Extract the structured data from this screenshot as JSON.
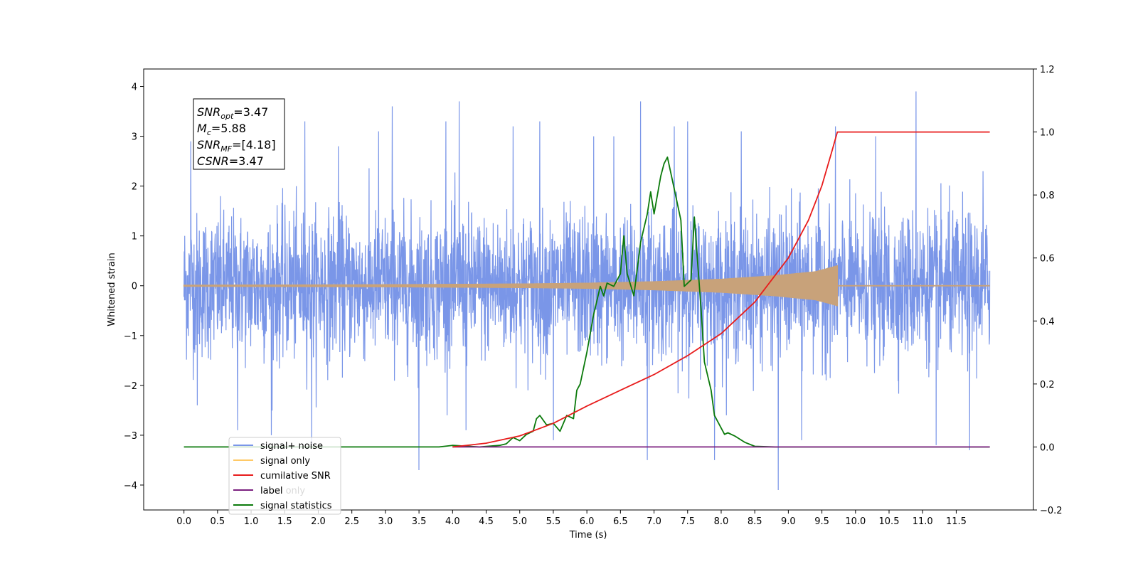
{
  "chart_data": {
    "type": "line",
    "xlabel": "Time (s)",
    "ylabel": "Whitened strain",
    "y2label": "",
    "xlim": [
      -0.6,
      12.65
    ],
    "ylim": [
      -4.5,
      4.35
    ],
    "y2lim": [
      -0.2,
      1.2
    ],
    "x_ticks": [
      0.0,
      0.5,
      1.0,
      1.5,
      2.0,
      2.5,
      3.0,
      3.5,
      4.0,
      4.5,
      5.0,
      5.5,
      6.0,
      6.5,
      7.0,
      7.5,
      8.0,
      8.5,
      9.0,
      9.5,
      10.0,
      10.5,
      11.0,
      11.5
    ],
    "x_tick_labels": [
      "0.0",
      "0.5",
      "1.0",
      "1.5",
      "2.0",
      "2.5",
      "3.0",
      "3.5",
      "4.0",
      "4.5",
      "5.0",
      "5.5",
      "6.0",
      "6.5",
      "7.0",
      "7.5",
      "8.0",
      "8.5",
      "9.0",
      "9.5",
      "10.0",
      "10.5",
      "11.0",
      "11.5"
    ],
    "y_ticks": [
      4,
      3,
      2,
      1,
      0,
      -1,
      -2,
      -3,
      -4
    ],
    "y_tick_labels": [
      "4",
      "3",
      "2",
      "1",
      "0",
      "−1",
      "−2",
      "−3",
      "−4"
    ],
    "y2_ticks": [
      1.2,
      1.0,
      0.8,
      0.6,
      0.4,
      0.2,
      0.0,
      -0.2
    ],
    "y2_tick_labels": [
      "1.2",
      "1.0",
      "0.8",
      "0.6",
      "0.4",
      "0.2",
      "0.0",
      "−0.2"
    ],
    "grid": false,
    "legend_position": "bottom-left",
    "stats_box": {
      "snr_opt": {
        "symbol": "SNR",
        "sub": "opt",
        "value": "=3.47"
      },
      "mc": {
        "symbol": "M",
        "sub": "c",
        "value": "=5.88"
      },
      "snr_mf": {
        "symbol": "SNR",
        "sub": "MF",
        "value": "=[4.18]"
      },
      "csnr": {
        "symbol": "CSNR",
        "sub": "",
        "value": "=3.47"
      }
    },
    "series": [
      {
        "name": "signal+ noise",
        "color": "#7a96e8",
        "axis": "left",
        "kind": "noise",
        "x_range": [
          0.0,
          12.0
        ],
        "typical_std": 0.72,
        "spikes": [
          [
            0.1,
            2.9
          ],
          [
            0.2,
            -2.4
          ],
          [
            0.8,
            -2.9
          ],
          [
            1.3,
            -3.0
          ],
          [
            1.8,
            3.3
          ],
          [
            1.9,
            -3.2
          ],
          [
            2.3,
            2.8
          ],
          [
            2.9,
            3.1
          ],
          [
            3.1,
            3.6
          ],
          [
            3.5,
            -3.7
          ],
          [
            3.9,
            3.3
          ],
          [
            4.1,
            3.7
          ],
          [
            4.2,
            -2.9
          ],
          [
            4.9,
            3.2
          ],
          [
            5.3,
            3.3
          ],
          [
            5.5,
            -3.1
          ],
          [
            6.1,
            3.0
          ],
          [
            6.4,
            3.0
          ],
          [
            6.8,
            3.7
          ],
          [
            6.9,
            -3.5
          ],
          [
            7.3,
            3.2
          ],
          [
            7.5,
            3.3
          ],
          [
            7.9,
            -3.5
          ],
          [
            8.3,
            3.1
          ],
          [
            8.85,
            -4.1
          ],
          [
            9.2,
            -3.1
          ],
          [
            9.7,
            3.2
          ],
          [
            10.3,
            3.0
          ],
          [
            10.9,
            3.9
          ],
          [
            11.2,
            -3.2
          ],
          [
            11.7,
            -3.3
          ],
          [
            11.9,
            2.3
          ]
        ]
      },
      {
        "name": "signal only",
        "color": "#c8a27a",
        "legend_color": "#ffc966",
        "axis": "left",
        "kind": "chirp",
        "x_range": [
          0.0,
          9.73
        ],
        "tail_range": [
          9.73,
          12.0
        ],
        "amplitude_points": [
          [
            0.0,
            0.01
          ],
          [
            3.0,
            0.02
          ],
          [
            5.0,
            0.035
          ],
          [
            6.0,
            0.05
          ],
          [
            7.0,
            0.08
          ],
          [
            8.0,
            0.13
          ],
          [
            8.8,
            0.2
          ],
          [
            9.4,
            0.28
          ],
          [
            9.6,
            0.35
          ],
          [
            9.73,
            0.4
          ]
        ]
      },
      {
        "name": "cumilative SNR",
        "color": "#e81c1c",
        "axis": "right",
        "points": [
          [
            4.0,
            0.0
          ],
          [
            4.5,
            0.012
          ],
          [
            5.0,
            0.035
          ],
          [
            5.5,
            0.075
          ],
          [
            6.0,
            0.13
          ],
          [
            6.5,
            0.18
          ],
          [
            7.0,
            0.23
          ],
          [
            7.5,
            0.29
          ],
          [
            8.0,
            0.36
          ],
          [
            8.5,
            0.46
          ],
          [
            9.0,
            0.6
          ],
          [
            9.3,
            0.72
          ],
          [
            9.5,
            0.83
          ],
          [
            9.65,
            0.94
          ],
          [
            9.73,
            1.0
          ],
          [
            12.0,
            1.0
          ]
        ]
      },
      {
        "name": "label",
        "color": "#7b1f7f",
        "axis": "right",
        "points": [
          [
            4.0,
            0.0
          ],
          [
            12.0,
            0.0
          ]
        ]
      },
      {
        "name": "label only",
        "color": "#ffffff",
        "axis": "right",
        "points": []
      },
      {
        "name": "signal statistics",
        "color": "#0b7a0b",
        "axis": "right",
        "points": [
          [
            0.0,
            0.0
          ],
          [
            3.8,
            0.0
          ],
          [
            4.0,
            0.005
          ],
          [
            4.4,
            0.0
          ],
          [
            4.7,
            0.005
          ],
          [
            4.8,
            0.01
          ],
          [
            4.9,
            0.03
          ],
          [
            5.0,
            0.02
          ],
          [
            5.1,
            0.04
          ],
          [
            5.2,
            0.05
          ],
          [
            5.25,
            0.09
          ],
          [
            5.3,
            0.1
          ],
          [
            5.4,
            0.07
          ],
          [
            5.5,
            0.075
          ],
          [
            5.6,
            0.05
          ],
          [
            5.7,
            0.1
          ],
          [
            5.8,
            0.09
          ],
          [
            5.85,
            0.18
          ],
          [
            5.9,
            0.2
          ],
          [
            6.0,
            0.3
          ],
          [
            6.1,
            0.42
          ],
          [
            6.2,
            0.51
          ],
          [
            6.25,
            0.48
          ],
          [
            6.3,
            0.52
          ],
          [
            6.4,
            0.51
          ],
          [
            6.5,
            0.55
          ],
          [
            6.55,
            0.67
          ],
          [
            6.6,
            0.55
          ],
          [
            6.7,
            0.48
          ],
          [
            6.8,
            0.65
          ],
          [
            6.9,
            0.74
          ],
          [
            6.95,
            0.81
          ],
          [
            7.0,
            0.74
          ],
          [
            7.1,
            0.86
          ],
          [
            7.15,
            0.9
          ],
          [
            7.2,
            0.92
          ],
          [
            7.3,
            0.82
          ],
          [
            7.4,
            0.72
          ],
          [
            7.45,
            0.51
          ],
          [
            7.55,
            0.53
          ],
          [
            7.6,
            0.73
          ],
          [
            7.7,
            0.44
          ],
          [
            7.75,
            0.27
          ],
          [
            7.85,
            0.18
          ],
          [
            7.9,
            0.1
          ],
          [
            8.0,
            0.06
          ],
          [
            8.05,
            0.04
          ],
          [
            8.1,
            0.045
          ],
          [
            8.2,
            0.035
          ],
          [
            8.35,
            0.015
          ],
          [
            8.5,
            0.002
          ],
          [
            8.8,
            0.0
          ],
          [
            12.0,
            0.0
          ]
        ]
      }
    ]
  }
}
